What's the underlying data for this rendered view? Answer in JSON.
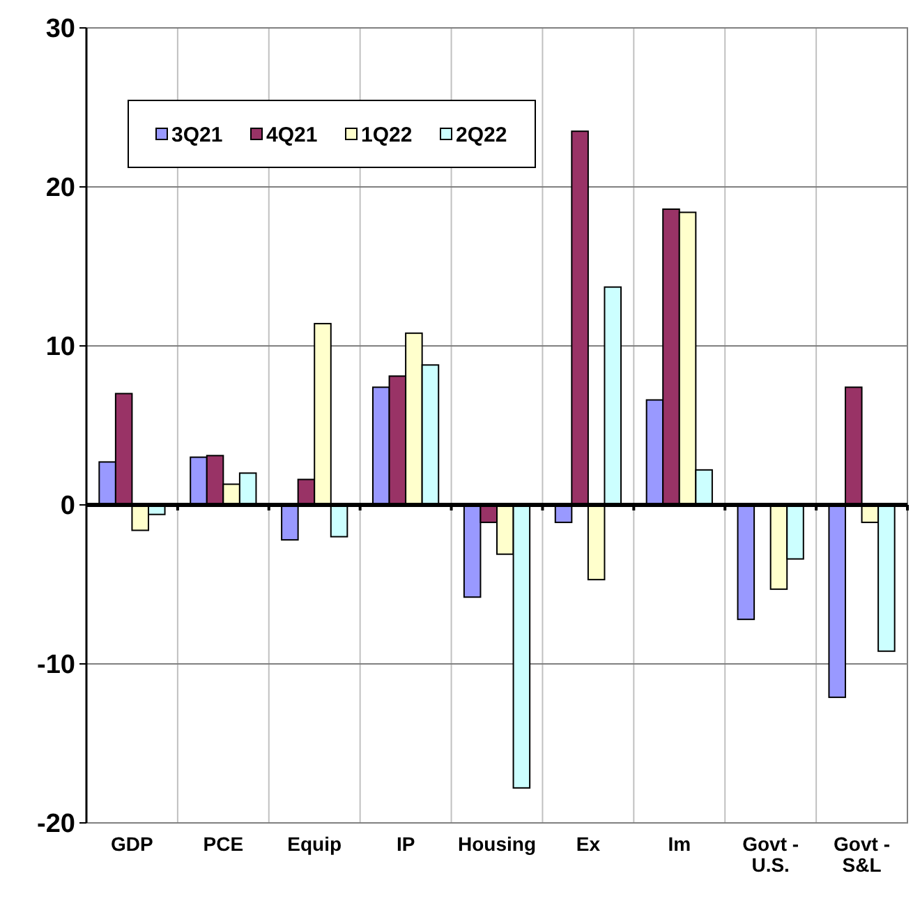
{
  "chart_data": {
    "type": "bar",
    "categories": [
      "GDP",
      "PCE",
      "Equip",
      "IP",
      "Housing",
      "Ex",
      "Im",
      "Govt - U.S.",
      "Govt - S&L"
    ],
    "series": [
      {
        "name": "3Q21",
        "color": "#9999ff",
        "values": [
          2.7,
          3.0,
          -2.2,
          7.4,
          -5.8,
          -1.1,
          6.6,
          -7.2,
          -12.1
        ]
      },
      {
        "name": "4Q21",
        "color": "#993366",
        "values": [
          7.0,
          3.1,
          1.6,
          8.1,
          -1.1,
          23.5,
          18.6,
          null,
          7.4
        ]
      },
      {
        "name": "1Q22",
        "color": "#ffffcc",
        "values": [
          -1.6,
          1.3,
          11.4,
          10.8,
          -3.1,
          -4.7,
          18.4,
          -5.3,
          -1.1
        ]
      },
      {
        "name": "2Q22",
        "color": "#ccffff",
        "values": [
          -0.6,
          2.0,
          -2.0,
          8.8,
          -17.8,
          13.7,
          2.2,
          -3.4,
          -9.2
        ]
      }
    ],
    "ylim": [
      -20,
      30
    ],
    "yticks": [
      -20,
      -10,
      0,
      10,
      20,
      30
    ],
    "grid": true,
    "legend": "top left"
  }
}
